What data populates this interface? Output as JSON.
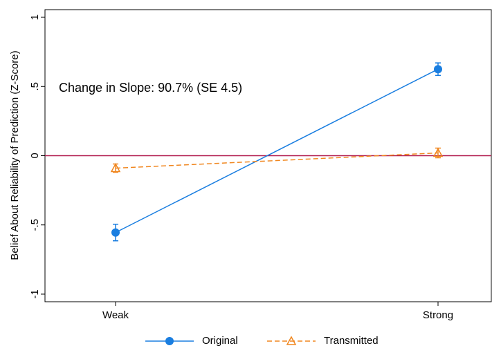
{
  "chart_data": {
    "type": "line",
    "y_label": "Belief About Reliability of Prediction (Z-Score)",
    "annotation": "Change in Slope: 90.7% (SE 4.5)",
    "categories": [
      "Weak",
      "Strong"
    ],
    "series": [
      {
        "name": "Original",
        "color": "#1a7ee0",
        "dash": "solid",
        "marker": "circle",
        "values": [
          -0.555,
          0.625
        ],
        "errors": [
          0.06,
          0.045
        ]
      },
      {
        "name": "Transmitted",
        "color": "#f0861e",
        "dash": "dashed",
        "marker": "triangle",
        "values": [
          -0.09,
          0.02
        ],
        "errors": [
          0.03,
          0.035
        ]
      }
    ],
    "reference_line": {
      "value": 0,
      "color": "#b0174a"
    },
    "ylim": [
      -1.055,
      1.055
    ],
    "yticks": [
      -1,
      {
        "value": -0.5,
        "label": "-.5"
      },
      0,
      {
        "value": 0.5,
        "label": ".5"
      },
      1
    ]
  }
}
